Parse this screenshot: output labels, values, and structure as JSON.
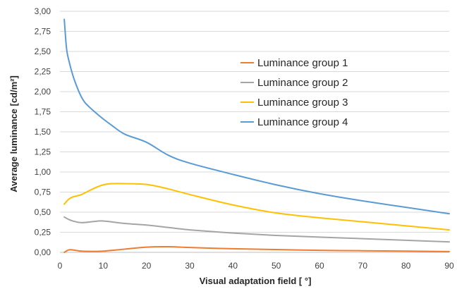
{
  "chart_data": {
    "type": "line",
    "title": "",
    "xlabel": "Visual adaptation field [ °]",
    "ylabel": "Average luminance [cd/m²]",
    "xlim": [
      0,
      90
    ],
    "ylim": [
      0,
      3
    ],
    "x_ticks": [
      "0",
      "10",
      "20",
      "30",
      "40",
      "50",
      "60",
      "70",
      "80",
      "90"
    ],
    "y_ticks": [
      "0,00",
      "0,25",
      "0,50",
      "0,75",
      "1,00",
      "1,25",
      "1,50",
      "1,75",
      "2,00",
      "2,25",
      "2,50",
      "2,75",
      "3,00"
    ],
    "grid": true,
    "legend_position": "top-right",
    "series": [
      {
        "name": "Luminance group 1",
        "color": "#ED7D31",
        "points": [
          [
            1,
            0.0
          ],
          [
            2,
            0.03
          ],
          [
            3,
            0.03
          ],
          [
            5,
            0.015
          ],
          [
            8,
            0.012
          ],
          [
            10,
            0.015
          ],
          [
            15,
            0.04
          ],
          [
            20,
            0.065
          ],
          [
            25,
            0.07
          ],
          [
            30,
            0.06
          ],
          [
            40,
            0.045
          ],
          [
            50,
            0.035
          ],
          [
            60,
            0.025
          ],
          [
            70,
            0.02
          ],
          [
            80,
            0.015
          ],
          [
            90,
            0.01
          ]
        ]
      },
      {
        "name": "Luminance group 2",
        "color": "#A5A5A5",
        "points": [
          [
            1,
            0.44
          ],
          [
            2,
            0.41
          ],
          [
            3,
            0.39
          ],
          [
            5,
            0.37
          ],
          [
            8,
            0.385
          ],
          [
            10,
            0.39
          ],
          [
            15,
            0.36
          ],
          [
            20,
            0.34
          ],
          [
            25,
            0.31
          ],
          [
            30,
            0.28
          ],
          [
            40,
            0.24
          ],
          [
            50,
            0.21
          ],
          [
            60,
            0.19
          ],
          [
            70,
            0.17
          ],
          [
            80,
            0.15
          ],
          [
            90,
            0.13
          ]
        ]
      },
      {
        "name": "Luminance group 3",
        "color": "#FFC000",
        "points": [
          [
            1,
            0.6
          ],
          [
            2,
            0.66
          ],
          [
            3,
            0.69
          ],
          [
            5,
            0.72
          ],
          [
            8,
            0.8
          ],
          [
            10,
            0.84
          ],
          [
            12,
            0.855
          ],
          [
            15,
            0.855
          ],
          [
            20,
            0.845
          ],
          [
            25,
            0.79
          ],
          [
            30,
            0.72
          ],
          [
            40,
            0.59
          ],
          [
            50,
            0.49
          ],
          [
            60,
            0.43
          ],
          [
            70,
            0.38
          ],
          [
            80,
            0.33
          ],
          [
            90,
            0.28
          ]
        ]
      },
      {
        "name": "Luminance group 4",
        "color": "#5B9BD5",
        "points": [
          [
            1,
            2.9
          ],
          [
            1.5,
            2.55
          ],
          [
            2,
            2.4
          ],
          [
            3,
            2.2
          ],
          [
            4,
            2.05
          ],
          [
            5,
            1.93
          ],
          [
            6,
            1.85
          ],
          [
            8,
            1.75
          ],
          [
            10,
            1.66
          ],
          [
            12,
            1.58
          ],
          [
            15,
            1.47
          ],
          [
            20,
            1.37
          ],
          [
            25,
            1.21
          ],
          [
            30,
            1.11
          ],
          [
            40,
            0.97
          ],
          [
            50,
            0.84
          ],
          [
            60,
            0.73
          ],
          [
            70,
            0.64
          ],
          [
            80,
            0.56
          ],
          [
            90,
            0.48
          ]
        ]
      }
    ]
  }
}
